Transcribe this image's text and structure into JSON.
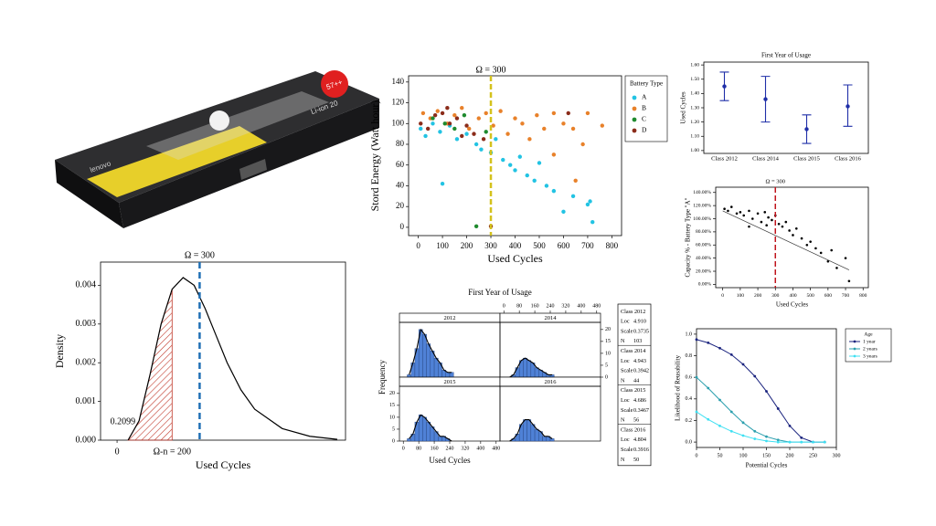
{
  "battery": {
    "brand": "lenovo",
    "model": "Li-ion 20",
    "badge": "57++"
  },
  "chart_data": [
    {
      "type": "scatter",
      "title": "Ω = 300",
      "vline": 300,
      "xlabel": "Used Cycles",
      "ylabel": "Stord Energy (Watt hour)",
      "xlim": [
        -40,
        840
      ],
      "xticks": [
        0,
        100,
        200,
        300,
        400,
        500,
        600,
        700,
        800
      ],
      "ylim": [
        -8,
        146
      ],
      "yticks": [
        0,
        20,
        40,
        60,
        80,
        100,
        120,
        140
      ],
      "legend_title": "Battery Type",
      "series": [
        {
          "name": "A",
          "color": "#22c3e3",
          "x": [
            10,
            30,
            60,
            90,
            100,
            130,
            160,
            200,
            240,
            260,
            300,
            320,
            350,
            380,
            400,
            420,
            450,
            480,
            500,
            530,
            560,
            600,
            640,
            700,
            720,
            710
          ],
          "values": [
            95,
            88,
            100,
            92,
            42,
            98,
            85,
            90,
            80,
            75,
            72,
            85,
            65,
            60,
            55,
            68,
            50,
            45,
            62,
            40,
            35,
            15,
            30,
            22,
            5,
            25
          ]
        },
        {
          "name": "B",
          "color": "#e8812a",
          "x": [
            20,
            50,
            80,
            120,
            150,
            180,
            210,
            250,
            280,
            310,
            340,
            370,
            400,
            430,
            460,
            490,
            520,
            560,
            600,
            640,
            680,
            700,
            760,
            650,
            560
          ],
          "values": [
            110,
            105,
            112,
            100,
            108,
            115,
            95,
            105,
            110,
            98,
            112,
            90,
            105,
            100,
            85,
            108,
            95,
            70,
            100,
            95,
            80,
            110,
            98,
            45,
            110
          ]
        },
        {
          "name": "C",
          "color": "#1f8a2e",
          "x": [
            60,
            110,
            150,
            190,
            240,
            280
          ],
          "values": [
            105,
            100,
            95,
            108,
            1,
            92
          ]
        },
        {
          "name": "D",
          "color": "#8b2c1a",
          "x": [
            10,
            40,
            70,
            100,
            130,
            160,
            200,
            230,
            270,
            300,
            120,
            180,
            620
          ],
          "values": [
            100,
            95,
            108,
            110,
            100,
            105,
            98,
            90,
            85,
            1,
            115,
            88,
            110
          ]
        }
      ]
    },
    {
      "type": "density",
      "title": "Ω = 300",
      "vline": 300,
      "xlabel": "Used Cycles",
      "ylabel": "Density",
      "xlim": [
        -60,
        830
      ],
      "xticks": [
        0
      ],
      "ylim": [
        0,
        0.0046
      ],
      "yticks": [
        {
          "value": 0,
          "label": "0.000"
        },
        0.001,
        0.002,
        0.003,
        0.004
      ],
      "x": [
        40,
        80,
        120,
        160,
        200,
        240,
        280,
        320,
        360,
        400,
        450,
        500,
        600,
        700,
        800
      ],
      "values": [
        0,
        0.0005,
        0.0017,
        0.003,
        0.0039,
        0.0042,
        0.004,
        0.0034,
        0.0027,
        0.002,
        0.0013,
        0.0008,
        0.0003,
        0.0001,
        2e-05
      ],
      "shade_to": 200,
      "shade_label": "Ω-n = 200",
      "shaded_area": 0.2099,
      "color": "#c0392b"
    },
    {
      "type": "histogram",
      "title": "First Year of Usage",
      "xlabel": "Used Cycles",
      "ylabel": "Frequency",
      "bins": [
        20,
        40,
        60,
        80,
        100,
        120,
        140,
        160,
        180,
        200,
        220,
        240,
        260
      ],
      "xlim": [
        -20,
        500
      ],
      "xticks": [
        0,
        80,
        160,
        240,
        320,
        400,
        480
      ],
      "ylim": [
        0,
        23
      ],
      "yticks": [
        0,
        5,
        10,
        15,
        20
      ],
      "color": "#4f81d6",
      "series": [
        {
          "name": "2012",
          "values": [
            1,
            6,
            12,
            20,
            18,
            14,
            11,
            8,
            6,
            3,
            2,
            2
          ]
        },
        {
          "name": "2014",
          "values": [
            0,
            1,
            4,
            7,
            8,
            7,
            6,
            4,
            3,
            2,
            1,
            1
          ]
        },
        {
          "name": "2015",
          "values": [
            1,
            3,
            8,
            11,
            10,
            8,
            6,
            4,
            2,
            2,
            1,
            0
          ]
        },
        {
          "name": "2016",
          "values": [
            0,
            1,
            3,
            7,
            9,
            9,
            7,
            5,
            4,
            2,
            2,
            1
          ]
        }
      ],
      "stats": [
        {
          "title": "Class 2012",
          "rows": [
            [
              "Loc",
              "4.910"
            ],
            [
              "Scale",
              "0.3735"
            ],
            [
              "N",
              "103"
            ]
          ]
        },
        {
          "title": "Class 2014",
          "rows": [
            [
              "Loc",
              "4.943"
            ],
            [
              "Scale",
              "0.3942"
            ],
            [
              "N",
              "44"
            ]
          ]
        },
        {
          "title": "Class 2015",
          "rows": [
            [
              "Loc",
              "4.686"
            ],
            [
              "Scale",
              "0.3467"
            ],
            [
              "N",
              "56"
            ]
          ]
        },
        {
          "title": "Class 2016",
          "rows": [
            [
              "Loc",
              "4.804"
            ],
            [
              "Scale",
              "0.3916"
            ],
            [
              "N",
              "50"
            ]
          ]
        }
      ]
    },
    {
      "type": "errorbar",
      "title": "First Year of Usage",
      "ylabel": "Used Cycles",
      "color": "#1f2fa8",
      "categories": [
        "Class 2012",
        "Class 2014",
        "Class 2015",
        "Class 2016"
      ],
      "values": [
        1.45,
        1.36,
        1.15,
        1.31
      ],
      "lower": [
        1.35,
        1.2,
        1.05,
        1.17
      ],
      "upper": [
        1.55,
        1.52,
        1.25,
        1.46
      ],
      "ylim": [
        0.98,
        1.62
      ],
      "yticks": [
        {
          "value": 1,
          "label": "1.00"
        },
        {
          "value": 1.1,
          "label": "1.10"
        },
        {
          "value": 1.2,
          "label": "1.20"
        },
        {
          "value": 1.3,
          "label": "1.30"
        },
        {
          "value": 1.4,
          "label": "1.40"
        },
        {
          "value": 1.5,
          "label": "1.50"
        },
        {
          "value": 1.6,
          "label": "1.60"
        }
      ]
    },
    {
      "type": "scatter",
      "title": "Ω = 300",
      "vline": 300,
      "xlabel": "Used Cycles",
      "ylabel": "Capacity % - Battery Type \"A\"",
      "xlim": [
        -40,
        830
      ],
      "xticks": [
        0,
        100,
        200,
        300,
        400,
        500,
        600,
        700,
        800
      ],
      "ylim": [
        -5,
        148
      ],
      "yticks": [
        {
          "value": 0,
          "label": "0.00%"
        },
        {
          "value": 20,
          "label": "20.00%"
        },
        {
          "value": 40,
          "label": "40.00%"
        },
        {
          "value": 60,
          "label": "60.00%"
        },
        {
          "value": 80,
          "label": "80.00%"
        },
        {
          "value": 100,
          "label": "100.00%"
        },
        {
          "value": 120,
          "label": "120.00%"
        },
        {
          "value": 140,
          "label": "140.00%"
        }
      ],
      "series": [
        {
          "color": "#000000",
          "x": [
            10,
            30,
            50,
            80,
            100,
            120,
            150,
            170,
            200,
            220,
            240,
            260,
            280,
            300,
            320,
            340,
            360,
            380,
            400,
            420,
            450,
            480,
            500,
            530,
            560,
            600,
            620,
            650,
            700,
            720,
            150,
            250
          ],
          "values": [
            115,
            112,
            118,
            108,
            110,
            105,
            112,
            100,
            108,
            95,
            110,
            102,
            98,
            105,
            92,
            88,
            95,
            82,
            75,
            85,
            70,
            60,
            65,
            55,
            48,
            35,
            52,
            25,
            40,
            5,
            88,
            90
          ]
        }
      ],
      "trend": {
        "x": [
          0,
          720
        ],
        "values": [
          112,
          22
        ]
      }
    },
    {
      "type": "line",
      "xlabel": "Potential Cycles",
      "ylabel": "Likelihood of Reusability",
      "xlim": [
        0,
        300
      ],
      "xticks": [
        0,
        50,
        100,
        150,
        200,
        250,
        300
      ],
      "ylim": [
        -0.05,
        1.05
      ],
      "yticks": [
        {
          "value": 0,
          "label": "0.0"
        },
        0.2,
        0.4,
        0.6,
        0.8,
        {
          "value": 1,
          "label": "1.0"
        }
      ],
      "legend_title": "Age",
      "x": [
        0,
        25,
        50,
        75,
        100,
        125,
        150,
        175,
        200,
        225,
        250,
        275
      ],
      "series": [
        {
          "name": "1 year",
          "color": "#1a237e",
          "values": [
            0.95,
            0.92,
            0.87,
            0.81,
            0.72,
            0.61,
            0.47,
            0.31,
            0.15,
            0.04,
            0.0,
            0.0
          ]
        },
        {
          "name": "2 years",
          "color": "#2b9fae",
          "values": [
            0.6,
            0.5,
            0.39,
            0.28,
            0.18,
            0.1,
            0.05,
            0.02,
            0.0,
            0.0,
            0.0,
            0.0
          ]
        },
        {
          "name": "3 years",
          "color": "#3fe0f2",
          "values": [
            0.28,
            0.21,
            0.15,
            0.1,
            0.06,
            0.03,
            0.01,
            0.0,
            0.0,
            0.0,
            0.0,
            0.0
          ]
        }
      ]
    }
  ]
}
